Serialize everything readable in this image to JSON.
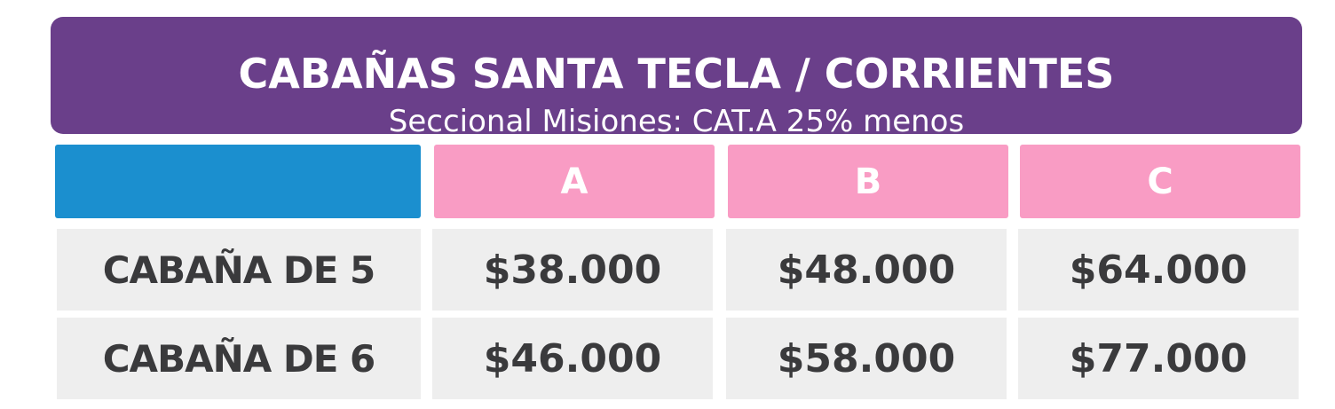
{
  "header": {
    "title": "CABAÑAS SANTA TECLA / CORRIENTES",
    "subtitle": "Seccional Misiones: CAT.A 25% menos"
  },
  "table": {
    "columns": [
      "A",
      "B",
      "C"
    ],
    "rows": [
      {
        "label": "CABAÑA DE 5",
        "prices": [
          "$38.000",
          "$48.000",
          "$64.000"
        ]
      },
      {
        "label": "CABAÑA DE 6",
        "prices": [
          "$46.000",
          "$58.000",
          "$77.000"
        ]
      }
    ]
  },
  "colors": {
    "header_bg": "#6a3f8a",
    "blank_head_bg": "#1b8fcf",
    "category_head_bg": "#f99cc4",
    "cell_bg": "#eeeeee",
    "text_dark": "#3a3a3c"
  }
}
